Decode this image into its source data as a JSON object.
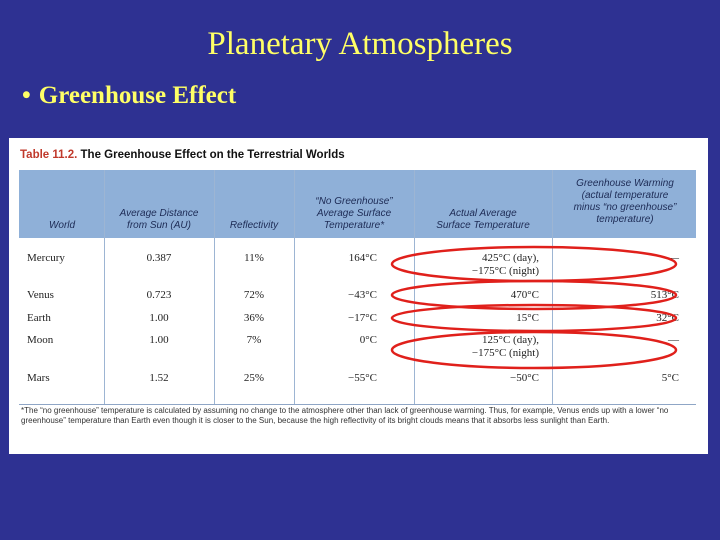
{
  "slide": {
    "title": "Planetary Atmospheres",
    "bullet": "Greenhouse Effect"
  },
  "table": {
    "caption_prefix": "Table 11.2.",
    "caption_text": "The Greenhouse Effect on the Terrestrial Worlds",
    "headers": {
      "world": "World",
      "distance": "Average Distance\nfrom Sun (AU)",
      "reflectivity": "Reflectivity",
      "no_greenhouse": "“No Greenhouse”\nAverage Surface\nTemperature*",
      "actual": "Actual Average\nSurface Temperature",
      "warming": "Greenhouse Warming\n(actual temperature\nminus “no greenhouse”\ntemperature)"
    },
    "rows": [
      {
        "world": "Mercury",
        "distance": "0.387",
        "reflectivity": "11%",
        "no_greenhouse": "164°C",
        "actual_1": "425°C (day),",
        "actual_2": "−175°C (night)",
        "warming": "—"
      },
      {
        "world": "Venus",
        "distance": "0.723",
        "reflectivity": "72%",
        "no_greenhouse": "−43°C",
        "actual_1": "470°C",
        "actual_2": "",
        "warming": "513°C"
      },
      {
        "world": "Earth",
        "distance": "1.00",
        "reflectivity": "36%",
        "no_greenhouse": "−17°C",
        "actual_1": "15°C",
        "actual_2": "",
        "warming": "32°C"
      },
      {
        "world": "Moon",
        "distance": "1.00",
        "reflectivity": "7%",
        "no_greenhouse": "0°C",
        "actual_1": "125°C (day),",
        "actual_2": "−175°C (night)",
        "warming": "—"
      },
      {
        "world": "Mars",
        "distance": "1.52",
        "reflectivity": "25%",
        "no_greenhouse": "−55°C",
        "actual_1": "−50°C",
        "actual_2": "",
        "warming": "5°C"
      }
    ],
    "footnote": "*The “no greenhouse” temperature is calculated by assuming no change to the atmosphere other than lack of greenhouse warming. Thus, for example, Venus ends up with a lower “no greenhouse” temperature than Earth even though it is closer to the Sun, because the high reflectivity of its bright clouds means that it absorbs less sunlight than Earth."
  },
  "colors": {
    "background": "#2e3192",
    "title": "#ffff66",
    "header_band": "#8fb0d8",
    "annotation": "#e0201b"
  }
}
